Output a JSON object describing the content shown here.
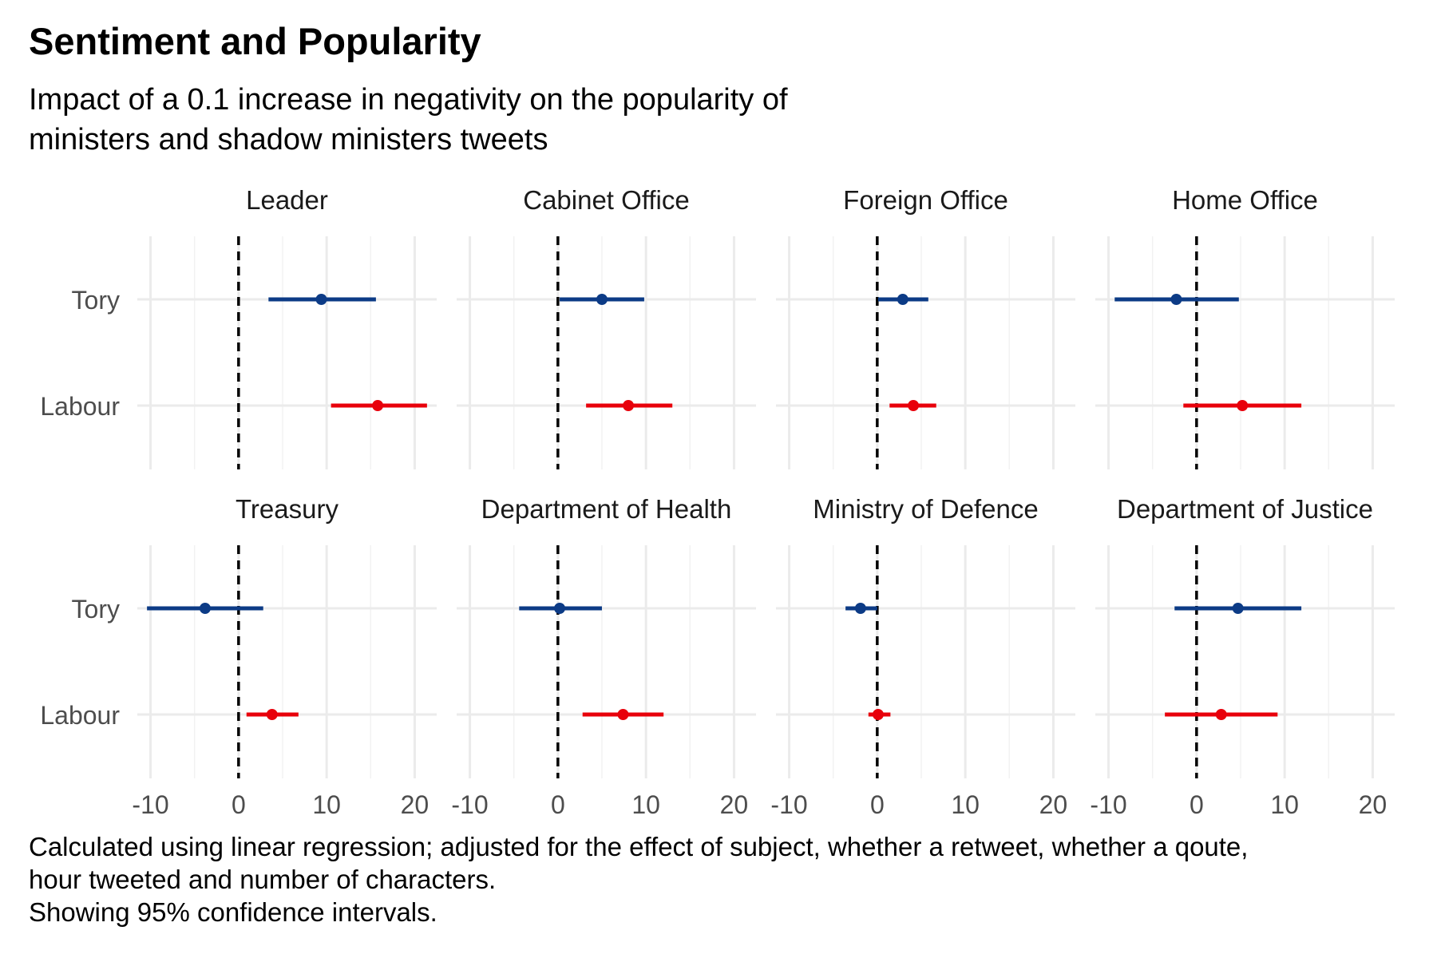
{
  "chart_data": {
    "type": "scatter",
    "title": "Sentiment and Popularity",
    "subtitle_lines": [
      "Impact of a 0.1 increase in negativity on the popularity of",
      "ministers and shadow ministers tweets"
    ],
    "caption_lines": [
      "Calculated using linear regression; adjusted for the effect of subject, whether a retweet, whether a qoute,",
      "hour tweeted and number of characters.",
      "Showing 95% confidence intervals."
    ],
    "xlim": [
      -11.5,
      22.5
    ],
    "x_ticks": [
      -10,
      0,
      10,
      20
    ],
    "x_tick_labels": [
      "-10",
      "0",
      "10",
      "20"
    ],
    "y_categories": [
      "Tory",
      "Labour"
    ],
    "reference_line_x": 0,
    "grid": true,
    "colors": {
      "Tory": "#0c3b86",
      "Labour": "#e8000b",
      "reference_line": "#000000",
      "grid": "#ebebeb"
    },
    "panels": [
      {
        "label": "Leader",
        "points": [
          {
            "party": "Tory",
            "estimate": 9.4,
            "lower": 3.4,
            "upper": 15.6
          },
          {
            "party": "Labour",
            "estimate": 15.8,
            "lower": 10.5,
            "upper": 21.4
          }
        ]
      },
      {
        "label": "Cabinet Office",
        "points": [
          {
            "party": "Tory",
            "estimate": 5.0,
            "lower": 0.2,
            "upper": 9.8
          },
          {
            "party": "Labour",
            "estimate": 8.0,
            "lower": 3.2,
            "upper": 13.0
          }
        ]
      },
      {
        "label": "Foreign Office",
        "points": [
          {
            "party": "Tory",
            "estimate": 2.9,
            "lower": 0.1,
            "upper": 5.8
          },
          {
            "party": "Labour",
            "estimate": 4.1,
            "lower": 1.4,
            "upper": 6.7
          }
        ]
      },
      {
        "label": "Home Office",
        "points": [
          {
            "party": "Tory",
            "estimate": -2.3,
            "lower": -9.3,
            "upper": 4.8
          },
          {
            "party": "Labour",
            "estimate": 5.2,
            "lower": -1.5,
            "upper": 11.9
          }
        ]
      },
      {
        "label": "Treasury",
        "points": [
          {
            "party": "Tory",
            "estimate": -3.8,
            "lower": -10.4,
            "upper": 2.8
          },
          {
            "party": "Labour",
            "estimate": 3.8,
            "lower": 0.9,
            "upper": 6.8
          }
        ]
      },
      {
        "label": "Department of Health",
        "points": [
          {
            "party": "Tory",
            "estimate": 0.2,
            "lower": -4.4,
            "upper": 5.0
          },
          {
            "party": "Labour",
            "estimate": 7.4,
            "lower": 2.8,
            "upper": 12.0
          }
        ]
      },
      {
        "label": "Ministry of Defence",
        "points": [
          {
            "party": "Tory",
            "estimate": -1.9,
            "lower": -3.6,
            "upper": 0.0
          },
          {
            "party": "Labour",
            "estimate": 0.1,
            "lower": -1.0,
            "upper": 1.5
          }
        ]
      },
      {
        "label": "Department of Justice",
        "points": [
          {
            "party": "Tory",
            "estimate": 4.7,
            "lower": -2.5,
            "upper": 11.9
          },
          {
            "party": "Labour",
            "estimate": 2.8,
            "lower": -3.6,
            "upper": 9.2
          }
        ]
      }
    ]
  }
}
